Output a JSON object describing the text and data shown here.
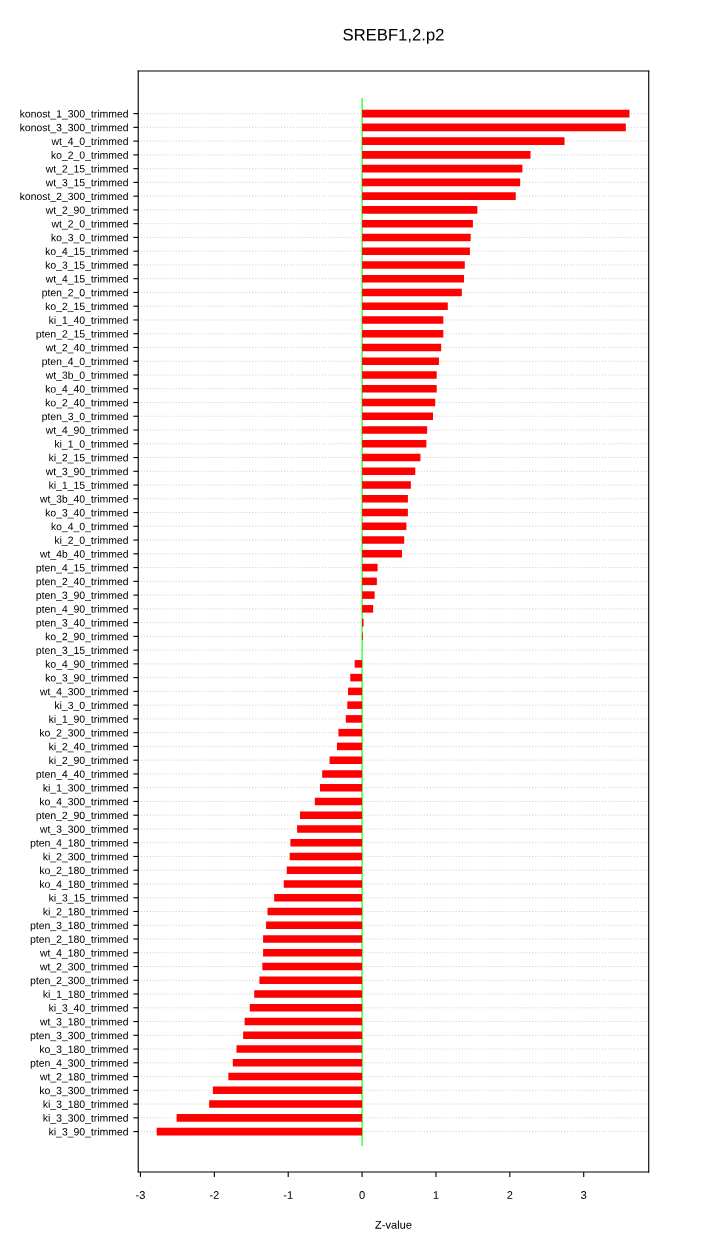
{
  "chart_data": {
    "type": "bar",
    "orientation": "horizontal",
    "title": "SREBF1,2.p2",
    "xlabel": "Z-value",
    "categories": [
      "konost_1_300_trimmed",
      "konost_3_300_trimmed",
      "wt_4_0_trimmed",
      "ko_2_0_trimmed",
      "wt_2_15_trimmed",
      "wt_3_15_trimmed",
      "konost_2_300_trimmed",
      "wt_2_90_trimmed",
      "wt_2_0_trimmed",
      "ko_3_0_trimmed",
      "ko_4_15_trimmed",
      "ko_3_15_trimmed",
      "wt_4_15_trimmed",
      "pten_2_0_trimmed",
      "ko_2_15_trimmed",
      "ki_1_40_trimmed",
      "pten_2_15_trimmed",
      "wt_2_40_trimmed",
      "pten_4_0_trimmed",
      "wt_3b_0_trimmed",
      "ko_4_40_trimmed",
      "ko_2_40_trimmed",
      "pten_3_0_trimmed",
      "wt_4_90_trimmed",
      "ki_1_0_trimmed",
      "ki_2_15_trimmed",
      "wt_3_90_trimmed",
      "ki_1_15_trimmed",
      "wt_3b_40_trimmed",
      "ko_3_40_trimmed",
      "ko_4_0_trimmed",
      "ki_2_0_trimmed",
      "wt_4b_40_trimmed",
      "pten_4_15_trimmed",
      "pten_2_40_trimmed",
      "pten_3_90_trimmed",
      "pten_4_90_trimmed",
      "pten_3_40_trimmed",
      "ko_2_90_trimmed",
      "pten_3_15_trimmed",
      "ko_4_90_trimmed",
      "ko_3_90_trimmed",
      "wt_4_300_trimmed",
      "ki_3_0_trimmed",
      "ki_1_90_trimmed",
      "ko_2_300_trimmed",
      "ki_2_40_trimmed",
      "ki_2_90_trimmed",
      "pten_4_40_trimmed",
      "ki_1_300_trimmed",
      "ko_4_300_trimmed",
      "pten_2_90_trimmed",
      "wt_3_300_trimmed",
      "pten_4_180_trimmed",
      "ki_2_300_trimmed",
      "ko_2_180_trimmed",
      "ko_4_180_trimmed",
      "ki_3_15_trimmed",
      "ki_2_180_trimmed",
      "pten_3_180_trimmed",
      "pten_2_180_trimmed",
      "wt_4_180_trimmed",
      "wt_2_300_trimmed",
      "pten_2_300_trimmed",
      "ki_1_180_trimmed",
      "ki_3_40_trimmed",
      "wt_3_180_trimmed",
      "pten_3_300_trimmed",
      "ko_3_180_trimmed",
      "pten_4_300_trimmed",
      "wt_2_180_trimmed",
      "ko_3_300_trimmed",
      "ki_3_180_trimmed",
      "ki_3_300_trimmed",
      "ki_3_90_trimmed"
    ],
    "values": [
      3.62,
      3.57,
      2.74,
      2.28,
      2.17,
      2.14,
      2.08,
      1.56,
      1.5,
      1.47,
      1.46,
      1.39,
      1.38,
      1.35,
      1.16,
      1.1,
      1.1,
      1.07,
      1.04,
      1.01,
      1.01,
      0.99,
      0.96,
      0.88,
      0.87,
      0.79,
      0.72,
      0.66,
      0.62,
      0.62,
      0.6,
      0.57,
      0.54,
      0.21,
      0.2,
      0.17,
      0.15,
      0.02,
      0.01,
      0.0,
      -0.1,
      -0.16,
      -0.19,
      -0.2,
      -0.22,
      -0.32,
      -0.34,
      -0.44,
      -0.54,
      -0.57,
      -0.64,
      -0.84,
      -0.88,
      -0.97,
      -0.98,
      -1.02,
      -1.06,
      -1.19,
      -1.28,
      -1.3,
      -1.34,
      -1.34,
      -1.35,
      -1.39,
      -1.46,
      -1.52,
      -1.59,
      -1.61,
      -1.7,
      -1.75,
      -1.81,
      -2.02,
      -2.07,
      -2.51,
      -2.78
    ],
    "color": "#ff0000",
    "xlim": [
      -3.03,
      3.88
    ],
    "xticks": [
      -3,
      -2,
      -1,
      0,
      1,
      2,
      3
    ],
    "ref_lines": [
      {
        "axis": "x",
        "value": 0,
        "color": "#00ff00"
      }
    ],
    "grid": "y"
  }
}
